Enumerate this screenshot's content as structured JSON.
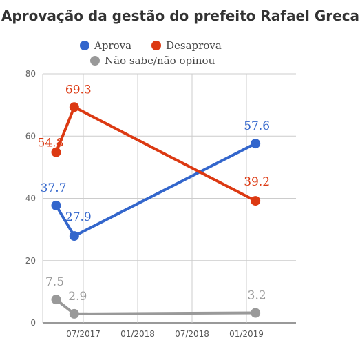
{
  "chart_data": {
    "type": "line",
    "title": "Aprovação da gestão do prefeito Rafael Greca",
    "ylim": [
      0,
      80
    ],
    "y_ticks": [
      0,
      20,
      40,
      60,
      80
    ],
    "x_ticks": [
      "07/2017",
      "01/2018",
      "07/2018",
      "01/2019"
    ],
    "grid": true,
    "legend_position": "top",
    "series": [
      {
        "name": "Aprova",
        "color": "#3366cc",
        "points": [
          {
            "x": "2017-04",
            "y": 37.7,
            "label": "37.7"
          },
          {
            "x": "2017-06",
            "y": 27.9,
            "label": "27.9"
          },
          {
            "x": "2019-02",
            "y": 57.6,
            "label": "57.6"
          }
        ]
      },
      {
        "name": "Desaprova",
        "color": "#dc3912",
        "points": [
          {
            "x": "2017-04",
            "y": 54.8,
            "label": "54.8"
          },
          {
            "x": "2017-06",
            "y": 69.3,
            "label": "69.3"
          },
          {
            "x": "2019-02",
            "y": 39.2,
            "label": "39.2"
          }
        ]
      },
      {
        "name": "Não sabe/não opinou",
        "color": "#999999",
        "points": [
          {
            "x": "2017-04",
            "y": 7.5,
            "label": "7.5"
          },
          {
            "x": "2017-06",
            "y": 2.9,
            "label": "2.9"
          },
          {
            "x": "2019-02",
            "y": 3.2,
            "label": "3.2"
          }
        ]
      }
    ]
  }
}
